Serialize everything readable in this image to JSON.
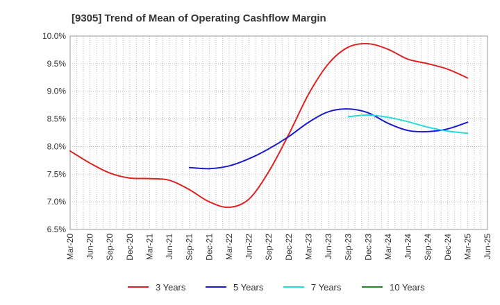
{
  "chart_data": {
    "type": "line",
    "title": "[9305]  Trend of Mean of Operating Cashflow Margin",
    "ylim": [
      6.5,
      10.0
    ],
    "yticks": [
      6.5,
      7.0,
      7.5,
      8.0,
      8.5,
      9.0,
      9.5,
      10.0
    ],
    "ytick_labels": [
      "6.5%",
      "7.0%",
      "7.5%",
      "8.0%",
      "8.5%",
      "9.0%",
      "9.5%",
      "10.0%"
    ],
    "x_tick_labels": [
      "Mar-20",
      "Jun-20",
      "Sep-20",
      "Dec-20",
      "Mar-21",
      "Jun-21",
      "Sep-21",
      "Dec-21",
      "Mar-22",
      "Jun-22",
      "Sep-22",
      "Dec-22",
      "Mar-23",
      "Jun-23",
      "Sep-23",
      "Dec-23",
      "Mar-24",
      "Jun-24",
      "Sep-24",
      "Dec-24",
      "Mar-25",
      "Jun-25"
    ],
    "grid": true,
    "legend_position": "bottom",
    "series": [
      {
        "name": "3 Years",
        "color": "#dd2222",
        "x": [
          "Mar-20",
          "Jun-20",
          "Sep-20",
          "Dec-20",
          "Mar-21",
          "Jun-21",
          "Sep-21",
          "Dec-21",
          "Mar-22",
          "Jun-22",
          "Sep-22",
          "Dec-22",
          "Mar-23",
          "Jun-23",
          "Sep-23",
          "Dec-23",
          "Mar-24",
          "Jun-24",
          "Sep-24",
          "Dec-24",
          "Mar-25"
        ],
        "values": [
          7.92,
          7.7,
          7.52,
          7.43,
          7.42,
          7.39,
          7.22,
          7.0,
          6.9,
          7.05,
          7.55,
          8.22,
          8.95,
          9.5,
          9.8,
          9.86,
          9.76,
          9.58,
          9.5,
          9.4,
          9.24
        ]
      },
      {
        "name": "5 Years",
        "color": "#1a1acc",
        "x": [
          "Sep-21",
          "Dec-21",
          "Mar-22",
          "Jun-22",
          "Sep-22",
          "Dec-22",
          "Mar-23",
          "Jun-23",
          "Sep-23",
          "Dec-23",
          "Mar-24",
          "Jun-24",
          "Sep-24",
          "Dec-24",
          "Mar-25"
        ],
        "values": [
          7.62,
          7.6,
          7.65,
          7.78,
          7.96,
          8.18,
          8.44,
          8.63,
          8.68,
          8.61,
          8.42,
          8.29,
          8.27,
          8.32,
          8.44
        ]
      },
      {
        "name": "7 Years",
        "color": "#22dddd",
        "x": [
          "Sep-23",
          "Dec-23",
          "Mar-24",
          "Jun-24",
          "Sep-24",
          "Dec-24",
          "Mar-25"
        ],
        "values": [
          8.54,
          8.57,
          8.53,
          8.45,
          8.35,
          8.28,
          8.24
        ]
      },
      {
        "name": "10 Years",
        "color": "#228822",
        "x": [],
        "values": []
      }
    ]
  }
}
